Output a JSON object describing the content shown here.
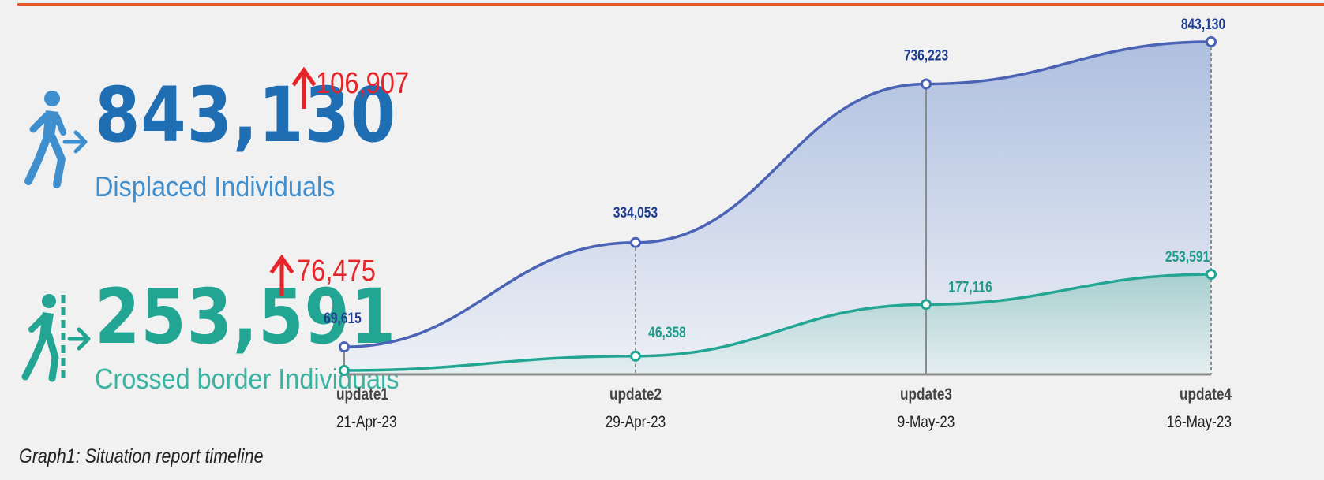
{
  "headline": {
    "displaced": {
      "value": "843,130",
      "label": "Displaced Individuals",
      "change": "106,907",
      "icon": "walking-person-arrow-icon"
    },
    "crossed": {
      "value": "253,591",
      "label": "Crossed border Individuals",
      "change": "76,475",
      "icon": "person-crossing-border-icon"
    }
  },
  "caption": "Graph1: Situation report timeline",
  "colors": {
    "displaced": "#4a63b5",
    "displaced_text": "#1f3d8f",
    "headline_blue": "#1f6db3",
    "crossed": "#22a693",
    "crossed_text": "#1e9c8a",
    "increase": "#e8242b",
    "accent_rule": "#e25a2e"
  },
  "chart_data": {
    "type": "area",
    "categories": [
      "update1",
      "update2",
      "update3",
      "update4"
    ],
    "dates": [
      "21-Apr-23",
      "29-Apr-23",
      "9-May-23",
      "16-May-23"
    ],
    "series": [
      {
        "values": [
          69615,
          334053,
          736223,
          843130
        ],
        "labels": [
          "69,615",
          "334,053",
          "736,223",
          "843,130"
        ]
      },
      {
        "values": [
          0,
          46358,
          177116,
          253591
        ],
        "labels": [
          "",
          "46,358",
          "177,116",
          "253,591"
        ]
      }
    ],
    "ylim": [
      0,
      843130
    ],
    "grid": false
  }
}
